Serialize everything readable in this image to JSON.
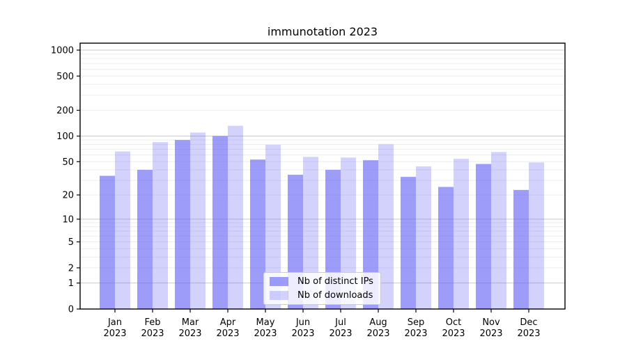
{
  "chart_data": {
    "type": "bar",
    "title": "immunotation 2023",
    "categories": [
      "Jan 2023",
      "Feb 2023",
      "Mar 2023",
      "Apr 2023",
      "May 2023",
      "Jun 2023",
      "Jul 2023",
      "Aug 2023",
      "Sep 2023",
      "Oct 2023",
      "Nov 2023",
      "Dec 2023"
    ],
    "series": [
      {
        "name": "Nb of distinct IPs",
        "color": "#6464f5",
        "alpha": 0.63,
        "values": [
          34,
          40,
          90,
          100,
          53,
          35,
          40,
          52,
          33,
          25,
          47,
          23
        ]
      },
      {
        "name": "Nb of downloads",
        "color": "#6464f5",
        "alpha": 0.29,
        "values": [
          66,
          85,
          110,
          132,
          79,
          57,
          56,
          80,
          44,
          54,
          65,
          49
        ]
      }
    ],
    "xlabel": "",
    "ylabel": "",
    "yscale": "log1p",
    "y_ticks": [
      0,
      1,
      2,
      5,
      10,
      20,
      50,
      100,
      200,
      500,
      1000
    ],
    "ylim": [
      0,
      1200
    ],
    "grid": true,
    "legend_position": "lower center"
  },
  "colors": {
    "major_grid": "#c9c9c9",
    "minor_grid": "#ececec",
    "axis": "#000000",
    "text": "#000000",
    "legend_border": "#cccccc"
  }
}
